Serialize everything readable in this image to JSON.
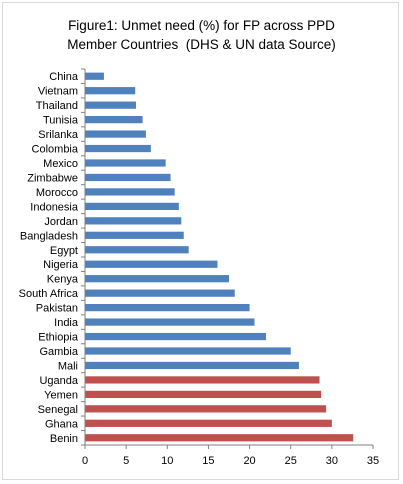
{
  "chart_data": {
    "type": "bar",
    "orientation": "horizontal",
    "title_lines": [
      "Figure1: Unmet need (%) for FP across PPD",
      "Member Countries  (DHS & UN data Source)"
    ],
    "categories": [
      "China",
      "Vietnam",
      "Thailand",
      "Tunisia",
      "Srilanka",
      "Colombia",
      "Mexico",
      "Zimbabwe",
      "Morocco",
      "Indonesia",
      "Jordan",
      "Bangladesh",
      "Egypt",
      "Nigeria",
      "Kenya",
      "South Africa",
      "Pakistan",
      "India",
      "Ethiopia",
      "Gambia",
      "Mali",
      "Uganda",
      "Yemen",
      "Senegal",
      "Ghana",
      "Benin"
    ],
    "values": [
      2.3,
      6.1,
      6.2,
      7.0,
      7.4,
      8.0,
      9.8,
      10.4,
      10.9,
      11.4,
      11.7,
      12.0,
      12.6,
      16.1,
      17.5,
      18.2,
      20.0,
      20.6,
      22.0,
      25.0,
      26.0,
      28.5,
      28.7,
      29.3,
      30.0,
      32.6
    ],
    "colors": [
      "#4f81bd",
      "#4f81bd",
      "#4f81bd",
      "#4f81bd",
      "#4f81bd",
      "#4f81bd",
      "#4f81bd",
      "#4f81bd",
      "#4f81bd",
      "#4f81bd",
      "#4f81bd",
      "#4f81bd",
      "#4f81bd",
      "#4f81bd",
      "#4f81bd",
      "#4f81bd",
      "#4f81bd",
      "#4f81bd",
      "#4f81bd",
      "#4f81bd",
      "#4f81bd",
      "#c0504d",
      "#c0504d",
      "#c0504d",
      "#c0504d",
      "#c0504d"
    ],
    "xlim": [
      0,
      35
    ],
    "xticks": [
      0,
      5,
      10,
      15,
      20,
      25,
      30,
      35
    ],
    "grid": false,
    "legend": "none"
  }
}
